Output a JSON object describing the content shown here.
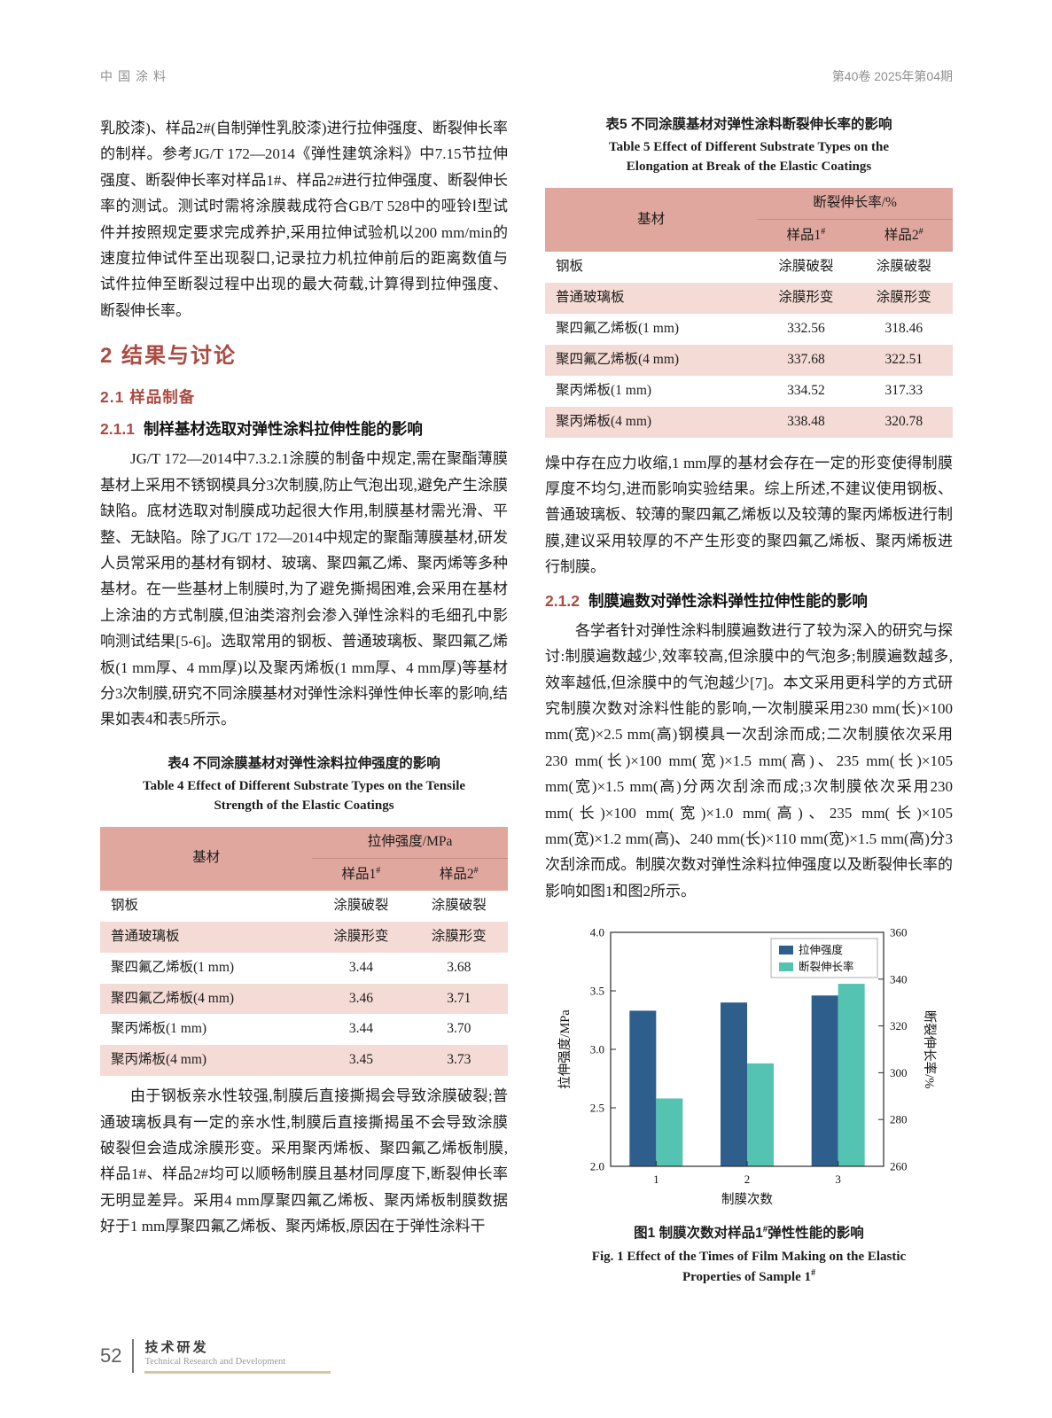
{
  "page": {
    "header_left": "中国涂料",
    "header_right": "第40卷   2025年第04期"
  },
  "left": {
    "para1": "乳胶漆)、样品2#(自制弹性乳胶漆)进行拉伸强度、断裂伸长率的制样。参考JG/T 172—2014《弹性建筑涂料》中7.15节拉伸强度、断裂伸长率对样品1#、样品2#进行拉伸强度、断裂伸长率的测试。测试时需将涂膜裁成符合GB/T 528中的哑铃Ⅰ型试件并按照规定要求完成养护,采用拉伸试验机以200 mm/min的速度拉伸试件至出现裂口,记录拉力机拉伸前后的距离数值与试件拉伸至断裂过程中出现的最大荷载,计算得到拉伸强度、断裂伸长率。",
    "h2": "2   结果与讨论",
    "h21": "2.1   样品制备",
    "h211_num": "2.1.1",
    "h211_title": "制样基材选取对弹性涂料拉伸性能的影响",
    "para2": "JG/T 172—2014中7.3.2.1涂膜的制备中规定,需在聚酯薄膜基材上采用不锈钢模具分3次制膜,防止气泡出现,避免产生涂膜缺陷。底材选取对制膜成功起很大作用,制膜基材需光滑、平整、无缺陷。除了JG/T 172—2014中规定的聚酯薄膜基材,研发人员常采用的基材有钢材、玻璃、聚四氟乙烯、聚丙烯等多种基材。在一些基材上制膜时,为了避免撕揭困难,会采用在基材上涂油的方式制膜,但油类溶剂会渗入弹性涂料的毛细孔中影响测试结果[5-6]。选取常用的钢板、普通玻璃板、聚四氟乙烯板(1 mm厚、4 mm厚)以及聚丙烯板(1 mm厚、4 mm厚)等基材分3次制膜,研究不同涂膜基材对弹性涂料弹性伸长率的影响,结果如表4和表5所示。",
    "para3": "由于钢板亲水性较强,制膜后直接撕揭会导致涂膜破裂;普通玻璃板具有一定的亲水性,制膜后直接撕揭虽不会导致涂膜破裂但会造成涂膜形变。采用聚丙烯板、聚四氟乙烯板制膜,样品1#、样品2#均可以顺畅制膜且基材同厚度下,断裂伸长率无明显差异。采用4 mm厚聚四氟乙烯板、聚丙烯板制膜数据好于1 mm厚聚四氟乙烯板、聚丙烯板,原因在于弹性涂料干"
  },
  "right": {
    "para1": "燥中存在应力收缩,1 mm厚的基材会存在一定的形变使得制膜厚度不均匀,进而影响实验结果。综上所述,不建议使用钢板、普通玻璃板、较薄的聚四氟乙烯板以及较薄的聚丙烯板进行制膜,建议采用较厚的不产生形变的聚四氟乙烯板、聚丙烯板进行制膜。",
    "h212_num": "2.1.2",
    "h212_title": "制膜遍数对弹性涂料弹性拉伸性能的影响",
    "para2": "各学者针对弹性涂料制膜遍数进行了较为深入的研究与探讨:制膜遍数越少,效率较高,但涂膜中的气泡多;制膜遍数越多,效率越低,但涂膜中的气泡越少[7]。本文采用更科学的方式研究制膜次数对涂料性能的影响,一次制膜采用230 mm(长)×100 mm(宽)×2.5 mm(高)钢模具一次刮涂而成;二次制膜依次采用230 mm(长)×100 mm(宽)×1.5 mm(高)、235 mm(长)×105 mm(宽)×1.5 mm(高)分两次刮涂而成;3次制膜依次采用230 mm(长)×100 mm(宽)×1.0 mm(高)、235 mm(长)×105 mm(宽)×1.2 mm(高)、240 mm(长)×110 mm(宽)×1.5 mm(高)分3次刮涂而成。制膜次数对弹性涂料拉伸强度以及断裂伸长率的影响如图1和图2所示。"
  },
  "table4": {
    "caption_cn": "表4   不同涂膜基材对弹性涂料拉伸强度的影响",
    "caption_en1": "Table 4   Effect of Different Substrate Types on the Tensile",
    "caption_en2": "Strength of the Elastic Coatings",
    "col_substrate": "基材",
    "col_group": "拉伸强度/MPa",
    "col_sample1": {
      "base": "样品1",
      "sup": "#"
    },
    "col_sample2": {
      "base": "样品2",
      "sup": "#"
    },
    "rows": [
      [
        "钢板",
        "涂膜破裂",
        "涂膜破裂"
      ],
      [
        "普通玻璃板",
        "涂膜形变",
        "涂膜形变"
      ],
      [
        "聚四氟乙烯板(1 mm)",
        "3.44",
        "3.68"
      ],
      [
        "聚四氟乙烯板(4 mm)",
        "3.46",
        "3.71"
      ],
      [
        "聚丙烯板(1 mm)",
        "3.44",
        "3.70"
      ],
      [
        "聚丙烯板(4 mm)",
        "3.45",
        "3.73"
      ]
    ]
  },
  "table5": {
    "caption_cn": "表5   不同涂膜基材对弹性涂料断裂伸长率的影响",
    "caption_en1": "Table 5   Effect of Different Substrate Types on the",
    "caption_en2": "Elongation at Break of the Elastic Coatings",
    "col_substrate": "基材",
    "col_group": "断裂伸长率/%",
    "col_sample1": {
      "base": "样品1",
      "sup": "#"
    },
    "col_sample2": {
      "base": "样品2",
      "sup": "#"
    },
    "rows": [
      [
        "钢板",
        "涂膜破裂",
        "涂膜破裂"
      ],
      [
        "普通玻璃板",
        "涂膜形变",
        "涂膜形变"
      ],
      [
        "聚四氟乙烯板(1 mm)",
        "332.56",
        "318.46"
      ],
      [
        "聚四氟乙烯板(4 mm)",
        "337.68",
        "322.51"
      ],
      [
        "聚丙烯板(1 mm)",
        "334.52",
        "317.33"
      ],
      [
        "聚丙烯板(4 mm)",
        "338.48",
        "320.78"
      ]
    ]
  },
  "chart_data": {
    "type": "bar",
    "categories": [
      "1",
      "2",
      "3"
    ],
    "series": [
      {
        "name": "拉伸强度",
        "values": [
          3.33,
          3.4,
          3.46
        ],
        "axis": "left",
        "color": "#2e5f8c"
      },
      {
        "name": "断裂伸长率",
        "values": [
          289,
          304,
          338
        ],
        "axis": "right",
        "color": "#55c3b1"
      }
    ],
    "xlabel": "制膜次数",
    "ylabel_left": "拉伸强度/MPa",
    "ylabel_right": "断裂伸长率/%",
    "ylim_left": [
      2.0,
      4.0
    ],
    "yticks_left": [
      2.0,
      2.5,
      3.0,
      3.5,
      4.0
    ],
    "ylim_right": [
      260,
      360
    ],
    "yticks_right": [
      260,
      280,
      300,
      320,
      340,
      360
    ],
    "legend_position": "top-right",
    "grid": false
  },
  "figure1": {
    "caption_cn_pre": "图1   制膜次数对样品1",
    "caption_cn_sup": "#",
    "caption_cn_post": "弹性性能的影响",
    "caption_en1": "Fig. 1   Effect of the Times of Film Making on the Elastic",
    "caption_en2_pre": "Properties of Sample 1",
    "caption_en2_sup": "#"
  },
  "footer": {
    "page_number": "52",
    "cn": "技术研发",
    "en": "Technical Research and Development"
  }
}
